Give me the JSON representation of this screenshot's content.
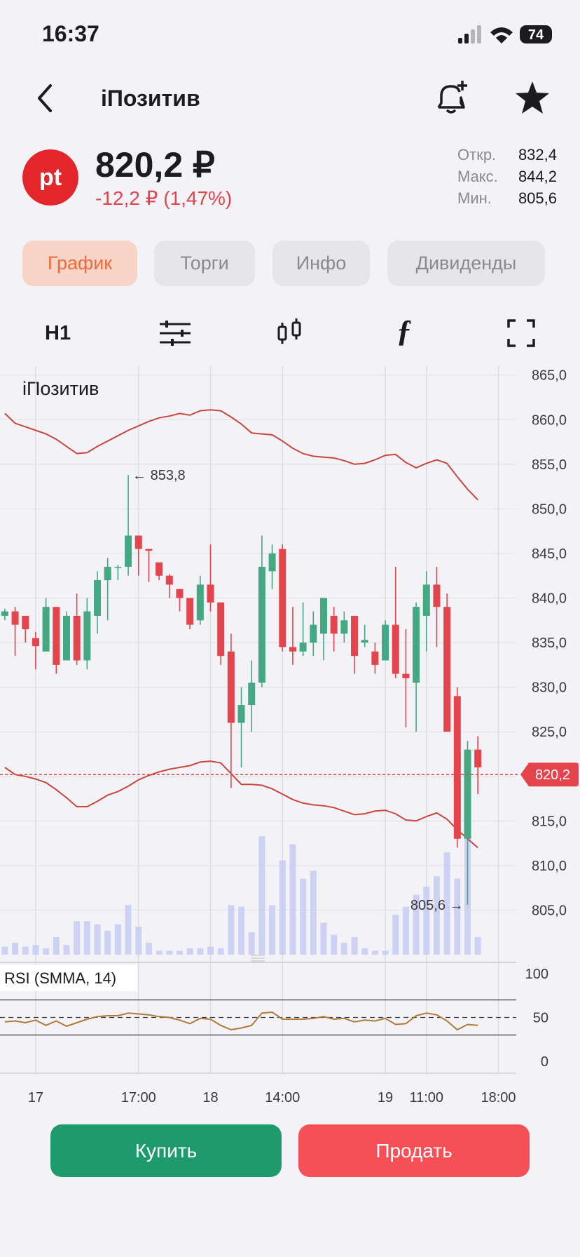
{
  "status_bar": {
    "time": "16:37",
    "battery": "74"
  },
  "header": {
    "title": "iПозитив"
  },
  "quote": {
    "logo": "pt",
    "price": "820,2 ₽",
    "change": "-12,2 ₽ (1,47%)",
    "stats": [
      {
        "label": "Откр.",
        "value": "832,4"
      },
      {
        "label": "Макс.",
        "value": "844,2"
      },
      {
        "label": "Мин.",
        "value": "805,6"
      }
    ]
  },
  "tabs": [
    "График",
    "Торги",
    "Инфо",
    "Дивиденды"
  ],
  "toolbar": {
    "interval": "H1"
  },
  "chart_data": {
    "type": "candlestick",
    "title": "iПозитив",
    "categories": [
      null,
      null,
      null,
      "17",
      null,
      null,
      null,
      null,
      null,
      null,
      null,
      null,
      null,
      "17:00",
      null,
      null,
      null,
      null,
      null,
      null,
      "18",
      null,
      null,
      null,
      null,
      null,
      null,
      "14:00",
      null,
      null,
      null,
      null,
      null,
      null,
      null,
      null,
      null,
      "19",
      null,
      null,
      null,
      "11:00",
      null,
      null,
      null,
      null,
      null,
      null,
      "18:00"
    ],
    "open": [
      838,
      838.5,
      838,
      835.5,
      834,
      839,
      833,
      838,
      833,
      838,
      842,
      843.5,
      843.5,
      847,
      845.5,
      844,
      842.5,
      841,
      840,
      837.5,
      841.5,
      839.5,
      834,
      826,
      828,
      830.5,
      843,
      845.5,
      834.5,
      834,
      835,
      836,
      838,
      836,
      838,
      835,
      834,
      833,
      837,
      831.5,
      830.5,
      838,
      841.5,
      839,
      829,
      813,
      823,
      null,
      null
    ],
    "high": [
      838.8,
      839,
      838,
      836.2,
      840,
      839,
      838.5,
      840.5,
      840,
      843,
      844.5,
      843.7,
      853.8,
      847,
      845.5,
      844,
      842.7,
      841,
      840,
      842.5,
      846,
      839.5,
      836,
      830,
      833,
      847,
      846,
      846,
      839,
      839.5,
      838.5,
      840,
      839,
      838.5,
      838,
      837,
      835,
      837.5,
      843.5,
      836.5,
      839.5,
      843,
      843.5,
      840.5,
      830,
      824,
      824.5,
      null,
      null
    ],
    "low": [
      837.5,
      833.5,
      835,
      832,
      834,
      831.5,
      833,
      832.5,
      832,
      836,
      837.5,
      842,
      842.5,
      842.5,
      841.8,
      842,
      840,
      838.5,
      836.5,
      837,
      838.5,
      832.5,
      818.7,
      821,
      825,
      830,
      841,
      834,
      832.5,
      833.5,
      833.5,
      833,
      834,
      835,
      831.5,
      834.5,
      831.5,
      833,
      831,
      825.5,
      825,
      834,
      834.5,
      825,
      812,
      805.6,
      818,
      null,
      null
    ],
    "close": [
      838.5,
      837,
      836.5,
      834.6,
      839,
      832.5,
      838,
      833,
      838.5,
      842,
      843.5,
      843.5,
      847,
      845.5,
      845.3,
      842.5,
      841.5,
      840,
      837,
      841.5,
      839.5,
      833.5,
      826,
      828,
      830.5,
      843.5,
      845,
      834.5,
      834,
      835,
      837,
      840,
      836,
      837.5,
      833.5,
      835.3,
      832.5,
      837,
      831.5,
      831,
      839,
      841.5,
      839,
      825,
      813,
      823,
      821,
      null,
      null
    ],
    "up_color": "#44a982",
    "down_color": "#e4454c",
    "bands": {
      "color": "#c8473f",
      "upper": [
        860.7,
        859.6,
        859.2,
        858.8,
        858.4,
        857.8,
        857,
        856.2,
        856.3,
        857,
        857.6,
        858.2,
        858.8,
        859.3,
        859.8,
        860.2,
        860.4,
        860.7,
        860.5,
        861,
        861.1,
        861,
        860.3,
        859.5,
        858.5,
        858.4,
        858.3,
        857.6,
        856.8,
        856.2,
        855.9,
        855.8,
        855.7,
        855.4,
        855,
        855.1,
        855.5,
        856,
        856.1,
        855.2,
        854.6,
        855.1,
        855.5,
        855.1,
        853.6,
        852.2,
        851,
        null,
        null
      ],
      "lower": [
        821,
        820.2,
        820,
        819.7,
        819.3,
        818.5,
        817.6,
        816.6,
        816.6,
        817.2,
        817.9,
        818.3,
        818.9,
        819.6,
        820.1,
        820.5,
        820.8,
        821,
        821.2,
        821.6,
        821.7,
        821.5,
        820.3,
        819.1,
        819.1,
        819,
        818.6,
        818,
        817.4,
        817,
        816.8,
        816.7,
        816.5,
        816.1,
        815.7,
        815.8,
        816.1,
        816.2,
        815.8,
        815.1,
        815,
        815.5,
        815.9,
        815.2,
        814,
        813,
        812,
        null,
        null
      ]
    },
    "volume": [
      10,
      15,
      10,
      12,
      8,
      22,
      12,
      42,
      42,
      38,
      30,
      38,
      62,
      35,
      15,
      5,
      5,
      5,
      8,
      8,
      10,
      8,
      62,
      60,
      28,
      148,
      62,
      118,
      138,
      95,
      105,
      40,
      25,
      15,
      22,
      8,
      5,
      5,
      50,
      60,
      75,
      85,
      98,
      128,
      95,
      148,
      22,
      null,
      null
    ],
    "volume_lim": [
      0,
      150
    ],
    "volume_color": "#c7cdf5",
    "ylim": [
      800,
      866
    ],
    "yticks": [
      {
        "value": 805,
        "label": "805,0"
      },
      {
        "value": 810,
        "label": "810,0"
      },
      {
        "value": 815,
        "label": "815,0"
      },
      {
        "value": 820,
        "label": "820,0"
      },
      {
        "value": 825,
        "label": "825,0"
      },
      {
        "value": 830,
        "label": "830,0"
      },
      {
        "value": 835,
        "label": "835,0"
      },
      {
        "value": 840,
        "label": "840,0"
      },
      {
        "value": 845,
        "label": "845,0"
      },
      {
        "value": 850,
        "label": "850,0"
      },
      {
        "value": 855,
        "label": "855,0"
      },
      {
        "value": 860,
        "label": "860,0"
      },
      {
        "value": 865,
        "label": "865,0"
      }
    ],
    "grid": true,
    "last_price": {
      "value": 820.2,
      "label": "820,2"
    },
    "high_mark": {
      "index": 12,
      "value": 853.8,
      "label": "← 853,8"
    },
    "low_mark": {
      "index": 45,
      "value": 805.6,
      "label": "805,6 →"
    },
    "rsi": {
      "title": "RSI (SMMA, 14)",
      "color": "#b07a38",
      "values": [
        45,
        46,
        44,
        47,
        41,
        46,
        40,
        44,
        48,
        51,
        52,
        52,
        55,
        54,
        53,
        51,
        50,
        47,
        43,
        49,
        48,
        41,
        36,
        38,
        41,
        55,
        56,
        48,
        48,
        48,
        49,
        51,
        48,
        49,
        45,
        47,
        46,
        49,
        42,
        43,
        52,
        55,
        53,
        46,
        36,
        42,
        41,
        null,
        null
      ],
      "ylim": [
        0,
        100
      ],
      "yticks": [
        0,
        50,
        100
      ],
      "levels": [
        30,
        70
      ]
    }
  },
  "buttons": {
    "buy": "Купить",
    "sell": "Продать"
  }
}
